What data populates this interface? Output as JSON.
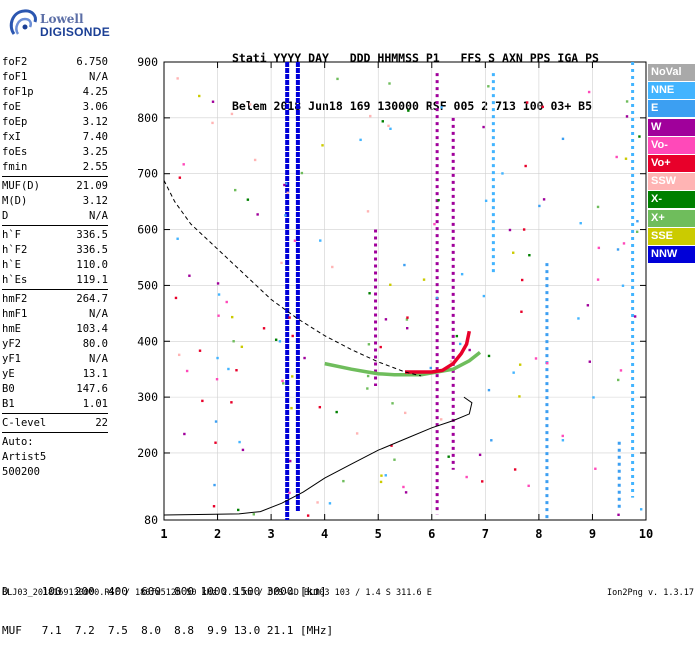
{
  "logo": {
    "line1": "Lowell",
    "line2": "DIGISONDE",
    "icon": "digisonde-swirl-logo"
  },
  "header": {
    "line1": "Stati YYYY DAY   DDD HHMMSS P1   FFS S AXN PPS IGA PS",
    "line2": "Belem 2018 Jun18 169 130000 RSF 005 2 713 100 03+ B5"
  },
  "params": [
    [
      {
        "k": "foF2",
        "v": "6.750"
      },
      {
        "k": "foF1",
        "v": "N/A"
      },
      {
        "k": "foF1p",
        "v": "4.25"
      },
      {
        "k": "foE",
        "v": "3.06"
      },
      {
        "k": "foEp",
        "v": "3.12"
      },
      {
        "k": "fxI",
        "v": "7.40"
      },
      {
        "k": "foEs",
        "v": "3.25"
      },
      {
        "k": "fmin",
        "v": "2.55"
      }
    ],
    [
      {
        "k": "MUF(D)",
        "v": "21.09"
      },
      {
        "k": "M(D)",
        "v": "3.12"
      },
      {
        "k": "D",
        "v": "N/A"
      }
    ],
    [
      {
        "k": "h`F",
        "v": "336.5"
      },
      {
        "k": "h`F2",
        "v": "336.5"
      },
      {
        "k": "h`E",
        "v": "110.0"
      },
      {
        "k": "h`Es",
        "v": "119.1"
      }
    ],
    [
      {
        "k": "hmF2",
        "v": "264.7"
      },
      {
        "k": "hmF1",
        "v": "N/A"
      },
      {
        "k": "hmE",
        "v": "103.4"
      },
      {
        "k": "yF2",
        "v": "80.0"
      },
      {
        "k": "yF1",
        "v": "N/A"
      },
      {
        "k": "yE",
        "v": "13.1"
      },
      {
        "k": "B0",
        "v": "147.6"
      },
      {
        "k": "B1",
        "v": "1.01"
      }
    ],
    [
      {
        "k": "C-level",
        "v": "22"
      }
    ]
  ],
  "auto": {
    "label": "Auto:",
    "name": "Artist5",
    "version": "500200"
  },
  "legend": [
    {
      "label": "NoVal",
      "color": "#a9a9a9"
    },
    {
      "label": "NNE",
      "color": "#42b4ff"
    },
    {
      "label": "E",
      "color": "#3c9ff2"
    },
    {
      "label": "W",
      "color": "#a0009b"
    },
    {
      "label": "Vo-",
      "color": "#ff49b9"
    },
    {
      "label": "Vo+",
      "color": "#e8002a"
    },
    {
      "label": "SSW",
      "color": "#ffb4b4"
    },
    {
      "label": "X-",
      "color": "#008000"
    },
    {
      "label": "X+",
      "color": "#6fbd5c"
    },
    {
      "label": "SSE",
      "color": "#cbcb00"
    },
    {
      "label": "NNW",
      "color": "#0000d8"
    }
  ],
  "table": {
    "row1": "D     100  200  400  600  800 1000 1500 3000 [km]",
    "row2": "MUF   7.1  7.2  7.5  8.0  8.8  9.9 13.0 21.1 [MHz]"
  },
  "footer": {
    "text": "BLJ03_2018169130000.RSF / 180fx512h 50 kHz 2.5 km / DPS-4D BLJ03 103 / 1.4 S 311.6 E",
    "version": "Ion2Png v. 1.3.17"
  },
  "chart_data": {
    "type": "scatter",
    "xlim": [
      1,
      10
    ],
    "ylim": [
      80,
      900
    ],
    "x_ticks": [
      "1",
      "2",
      "3",
      "4",
      "5",
      "6",
      "7",
      "8",
      "9",
      "10"
    ],
    "y_ticks": [
      "80",
      "200",
      "300",
      "400",
      "500",
      "600",
      "700",
      "800",
      "900"
    ],
    "grid": true,
    "traces": {
      "O_trace_profile": {
        "x": [
          1.0,
          1.8,
          2.4,
          2.8,
          3.2,
          3.6,
          4.0,
          4.5,
          5.0,
          5.5,
          6.0,
          6.4,
          6.7,
          6.75,
          6.6
        ],
        "y": [
          89,
          90,
          91,
          95,
          110,
          130,
          155,
          180,
          205,
          225,
          245,
          258,
          270,
          290,
          300
        ]
      },
      "X_trace_dashed": {
        "x": [
          1.0,
          1.2,
          1.5,
          2.0,
          2.5,
          3.0,
          3.5,
          4.0,
          4.5,
          5.0,
          5.5,
          5.8
        ],
        "y": [
          688,
          650,
          610,
          565,
          520,
          475,
          440,
          410,
          385,
          363,
          345,
          338
        ]
      },
      "F2_trace_Vo+": {
        "x": [
          5.5,
          5.8,
          6.0,
          6.2,
          6.4,
          6.55,
          6.65,
          6.7
        ],
        "y": [
          345,
          345,
          345,
          348,
          360,
          378,
          395,
          418
        ]
      },
      "F2_trace_X": {
        "x": [
          4.0,
          4.5,
          4.8,
          5.0,
          5.3,
          5.6,
          5.8,
          6.4,
          6.7,
          6.9
        ],
        "y": [
          360,
          350,
          345,
          342,
          340,
          340,
          340,
          350,
          365,
          380
        ]
      }
    },
    "vertical_streaks": [
      {
        "x": 3.3,
        "y": [
          80,
          900
        ],
        "color": "#0000d8"
      },
      {
        "x": 3.5,
        "y": [
          95,
          900
        ],
        "color": "#0000d8"
      },
      {
        "x": 6.1,
        "y": [
          90,
          880
        ],
        "color": "#a0009b"
      },
      {
        "x": 6.4,
        "y": [
          170,
          800
        ],
        "color": "#a0009b"
      },
      {
        "x": 8.15,
        "y": [
          80,
          540
        ],
        "color": "#3c9ff2"
      },
      {
        "x": 7.15,
        "y": [
          520,
          880
        ],
        "color": "#42b4ff"
      },
      {
        "x": 4.95,
        "y": [
          320,
          600
        ],
        "color": "#a0009b"
      },
      {
        "x": 9.5,
        "y": [
          100,
          220
        ],
        "color": "#3c9ff2"
      },
      {
        "x": 9.75,
        "y": [
          120,
          900
        ],
        "color": "#42b4ff"
      }
    ]
  }
}
